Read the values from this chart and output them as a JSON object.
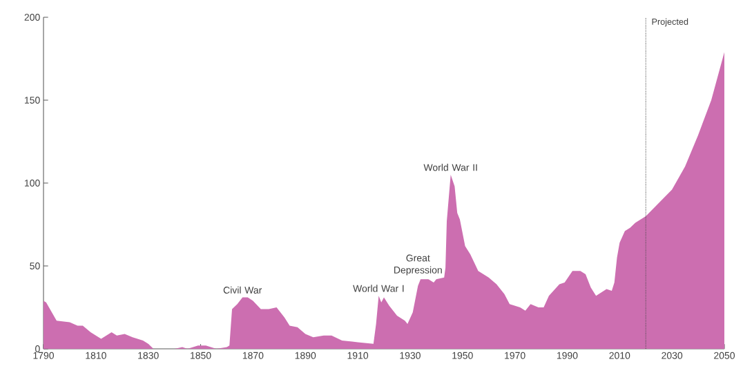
{
  "chart_data": {
    "type": "area",
    "color": "#cc6eb0",
    "x": [
      1790,
      1791,
      1795,
      1800,
      1803,
      1805,
      1808,
      1810,
      1812,
      1814,
      1816,
      1818,
      1821,
      1824,
      1828,
      1830,
      1832,
      1840,
      1843,
      1845,
      1849,
      1852,
      1856,
      1860,
      1861,
      1862,
      1864,
      1866,
      1868,
      1870,
      1873,
      1876,
      1879,
      1882,
      1884,
      1887,
      1890,
      1893,
      1897,
      1900,
      1904,
      1910,
      1916,
      1917,
      1918,
      1919,
      1920,
      1922,
      1925,
      1928,
      1929,
      1931,
      1933,
      1934,
      1937,
      1939,
      1940,
      1943,
      1943.5,
      1944,
      1945.5,
      1947,
      1948,
      1949,
      1951,
      1953,
      1956,
      1960,
      1963,
      1966,
      1968,
      1972,
      1974,
      1976,
      1979,
      1981,
      1983,
      1987,
      1989,
      1992,
      1995,
      1997,
      1999,
      2001,
      2003,
      2005,
      2007,
      2008,
      2009,
      2010,
      2012,
      2014,
      2016,
      2018,
      2020,
      2025,
      2030,
      2035,
      2040,
      2045,
      2050
    ],
    "values": [
      29,
      28,
      17,
      16,
      14,
      14,
      10,
      8,
      6,
      8,
      10,
      8,
      9,
      7,
      5,
      3,
      0,
      0,
      1,
      0,
      2,
      2,
      0,
      1,
      2,
      24,
      27,
      31,
      31,
      29,
      24,
      24,
      25,
      19,
      14,
      13,
      9,
      7,
      8,
      8,
      5,
      4,
      3,
      15,
      32,
      28,
      31,
      26,
      20,
      17,
      15,
      22,
      38,
      42,
      42,
      40,
      42,
      43,
      49,
      77,
      105,
      98,
      82,
      78,
      62,
      57,
      47,
      43,
      39,
      33,
      27,
      25,
      23,
      27,
      25,
      25,
      32,
      39,
      40,
      47,
      47,
      45,
      37,
      32,
      34,
      36,
      35,
      40,
      55,
      64,
      71,
      73,
      76,
      78,
      80,
      88,
      96,
      110,
      129,
      150,
      179
    ],
    "xlim": [
      1790,
      2050
    ],
    "xticks": [
      1790,
      1810,
      1830,
      1850,
      1870,
      1890,
      1910,
      1930,
      1950,
      1970,
      1990,
      2010,
      2030,
      2050
    ],
    "ylim": [
      0,
      200
    ],
    "yticks": [
      0,
      50,
      100,
      150,
      200
    ],
    "grid": false,
    "ref_lines": [
      {
        "axis": "x",
        "value": 2020,
        "label": "Projected",
        "line_style": "dotted"
      }
    ],
    "annotations": [
      {
        "text": "Civil War",
        "x": 1866,
        "y": 31
      },
      {
        "text": "World War I",
        "x": 1918,
        "y": 32
      },
      {
        "text": "Great Depression",
        "x": 1933,
        "y": 42
      },
      {
        "text": "World War II",
        "x": 1945.5,
        "y": 105
      }
    ]
  }
}
